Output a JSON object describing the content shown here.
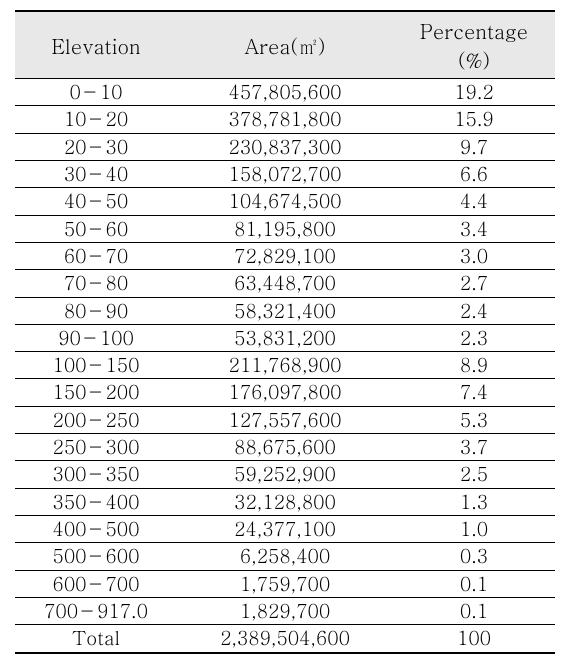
{
  "table": {
    "columns": [
      "Elevation",
      "Area(㎡)",
      "Percentage (%)"
    ],
    "rows": [
      [
        "0－10",
        "457,805,600",
        "19.2"
      ],
      [
        "10－20",
        "378,781,800",
        "15.9"
      ],
      [
        "20－30",
        "230,837,300",
        "9.7"
      ],
      [
        "30－40",
        "158,072,700",
        "6.6"
      ],
      [
        "40－50",
        "104,674,500",
        "4.4"
      ],
      [
        "50－60",
        "81,195,800",
        "3.4"
      ],
      [
        "60－70",
        "72,829,100",
        "3.0"
      ],
      [
        "70－80",
        "63,448,700",
        "2.7"
      ],
      [
        "80－90",
        "58,321,400",
        "2.4"
      ],
      [
        "90－100",
        "53,831,200",
        "2.3"
      ],
      [
        "100－150",
        "211,768,900",
        "8.9"
      ],
      [
        "150－200",
        "176,097,800",
        "7.4"
      ],
      [
        "200－250",
        "127,557,600",
        "5.3"
      ],
      [
        "250－300",
        "88,675,600",
        "3.7"
      ],
      [
        "300－350",
        "59,252,900",
        "2.5"
      ],
      [
        "350－400",
        "32,128,800",
        "1.3"
      ],
      [
        "400－500",
        "24,377,100",
        "1.0"
      ],
      [
        "500－600",
        "6,258,400",
        "0.3"
      ],
      [
        "600－700",
        "1,759,700",
        "0.1"
      ],
      [
        "700－917.0",
        "1,829,700",
        "0.1"
      ],
      [
        "Total",
        "2,389,504,600",
        "100"
      ]
    ],
    "header_bg": "#e8e8e8",
    "border_color": "#000000",
    "font_size_header": 20,
    "font_size_body": 19
  }
}
